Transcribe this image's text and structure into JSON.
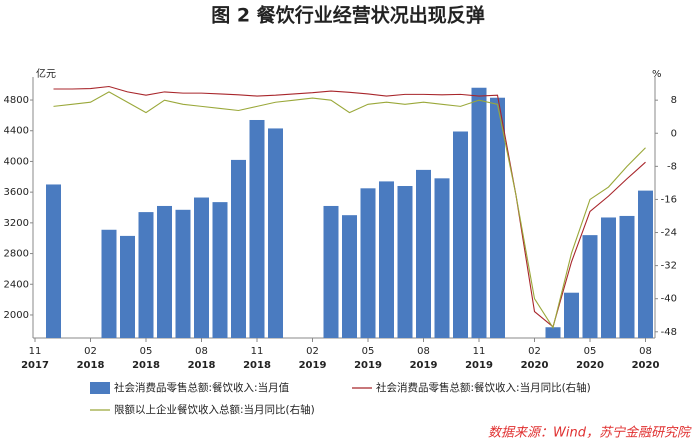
{
  "chart_data": {
    "type": "bar_line",
    "title": "图 2  餐饮行业经营状况出现反弹",
    "y_unit": "亿元",
    "y2_unit": "%",
    "source": "数据来源：Wind，苏宁金融研究院",
    "categories": [
      "11",
      null,
      null,
      "02",
      null,
      null,
      "05",
      null,
      null,
      "08",
      null,
      null,
      "11",
      null,
      null,
      "02",
      null,
      null,
      "05",
      null,
      null,
      "08",
      null,
      null,
      "11",
      null,
      null,
      "02",
      null,
      null,
      "05",
      null,
      null,
      "08"
    ],
    "category_years": [
      "2017",
      null,
      null,
      "2018",
      null,
      null,
      "2018",
      null,
      null,
      "2018",
      null,
      null,
      "2018",
      null,
      null,
      "2019",
      null,
      null,
      "2019",
      null,
      null,
      "2019",
      null,
      null,
      "2019",
      null,
      null,
      "2020",
      null,
      null,
      "2020",
      null,
      null,
      "2020"
    ],
    "ylim": [
      1700,
      5100
    ],
    "yticks": [
      2000,
      2400,
      2800,
      3200,
      3600,
      4000,
      4400,
      4800
    ],
    "y2lim": [
      -49.5,
      13.6
    ],
    "y2ticks": [
      -48,
      -40,
      -32,
      -24,
      -16,
      -8,
      0,
      8
    ],
    "legend": "bottom",
    "series": [
      {
        "name": "社会消费品零售总额:餐饮收入:当月值",
        "type": "bar",
        "color": "#4a7bc0",
        "values": [
          null,
          3700,
          null,
          null,
          3110,
          3030,
          3340,
          3420,
          3370,
          3530,
          3470,
          4020,
          4540,
          4430,
          null,
          null,
          3420,
          3300,
          3650,
          3740,
          3680,
          3890,
          3780,
          4390,
          4960,
          4830,
          null,
          null,
          1840,
          2290,
          3040,
          3270,
          3290,
          3620
        ]
      },
      {
        "name": "社会消费品零售总额:餐饮收入:当月同比(右轴)",
        "type": "line",
        "axis": "y2",
        "color": "#a8262b",
        "values": [
          null,
          10.7,
          10.7,
          10.8,
          11.3,
          10.0,
          9.2,
          10.0,
          9.7,
          9.7,
          9.5,
          9.3,
          9.0,
          9.2,
          9.5,
          9.8,
          10.2,
          9.9,
          9.5,
          9.0,
          9.4,
          9.4,
          9.3,
          9.4,
          9.0,
          9.2,
          -15,
          -43.1,
          -46.8,
          -31.1,
          -18.9,
          -15.2,
          -11.0,
          -7.0
        ]
      },
      {
        "name": "限额以上企业餐饮收入总额:当月同比(右轴)",
        "type": "line",
        "axis": "y2",
        "color": "#9aa83a",
        "values": [
          null,
          6.5,
          7.0,
          7.5,
          10.0,
          7.5,
          5.0,
          8.0,
          7.0,
          6.5,
          6.0,
          5.5,
          6.5,
          7.5,
          8.0,
          8.5,
          8.0,
          5.0,
          7.0,
          7.5,
          7.0,
          7.5,
          7.0,
          6.5,
          8.0,
          7.0,
          -15,
          -40,
          -47,
          -29,
          -16,
          -13,
          -8,
          -3.5
        ]
      }
    ]
  }
}
